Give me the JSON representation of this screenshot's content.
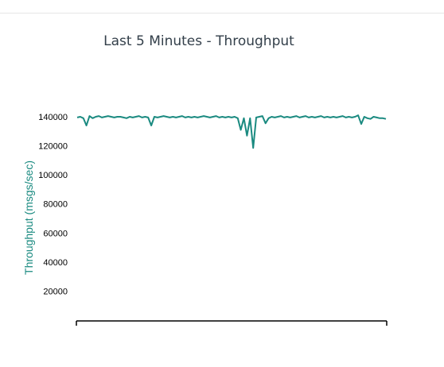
{
  "chart_data": {
    "type": "line",
    "title": "Last 5 Minutes - Throughput",
    "ylabel": "Throughput (msgs/sec)",
    "xlabel": "",
    "ylim": [
      0,
      143000
    ],
    "yticks": [
      20000,
      40000,
      60000,
      80000,
      100000,
      120000,
      140000
    ],
    "grid": false,
    "series": [
      {
        "color": "#1a8a80",
        "x": [
          0,
          1,
          2,
          3,
          4,
          5,
          6,
          7,
          8,
          9,
          10,
          11,
          12,
          13,
          14,
          15,
          16,
          17,
          18,
          19,
          20,
          21,
          22,
          23,
          24,
          25,
          26,
          27,
          28,
          29,
          30,
          31,
          32,
          33,
          34,
          35,
          36,
          37,
          38,
          39,
          40,
          41,
          42,
          43,
          44,
          45,
          46,
          47,
          48,
          49,
          50,
          51,
          52,
          53,
          54,
          55,
          56,
          57,
          58,
          59,
          60,
          61,
          62,
          63,
          64,
          65,
          66,
          67,
          68,
          69,
          70,
          71,
          72,
          73,
          74,
          75,
          76,
          77,
          78,
          79,
          80,
          81,
          82,
          83,
          84,
          85,
          86,
          87,
          88,
          89,
          90,
          91,
          92,
          93,
          94,
          95,
          96,
          97,
          98,
          99,
          100
        ],
        "values": [
          139500,
          140000,
          139000,
          134000,
          140500,
          139000,
          140000,
          140500,
          139500,
          140000,
          140500,
          140000,
          139500,
          140000,
          140000,
          139500,
          139000,
          140000,
          139500,
          140000,
          140500,
          139500,
          140000,
          139500,
          134000,
          140000,
          139500,
          140000,
          140500,
          140000,
          139500,
          140000,
          139500,
          140000,
          140500,
          139500,
          140000,
          139500,
          140000,
          139500,
          140000,
          140500,
          140000,
          139500,
          140000,
          140500,
          139500,
          140000,
          139500,
          140000,
          139500,
          140000,
          139000,
          131000,
          139000,
          127000,
          139000,
          118500,
          139500,
          140000,
          140500,
          135500,
          139000,
          140000,
          139500,
          140000,
          140500,
          139500,
          140000,
          139500,
          140000,
          140500,
          139500,
          140000,
          140500,
          139500,
          140000,
          139500,
          140000,
          140500,
          139500,
          140000,
          139500,
          140000,
          139500,
          140000,
          140500,
          139500,
          140000,
          139500,
          140000,
          141000,
          135000,
          140000,
          139000,
          138500,
          140000,
          139500,
          139000,
          139000,
          138500
        ]
      }
    ]
  }
}
